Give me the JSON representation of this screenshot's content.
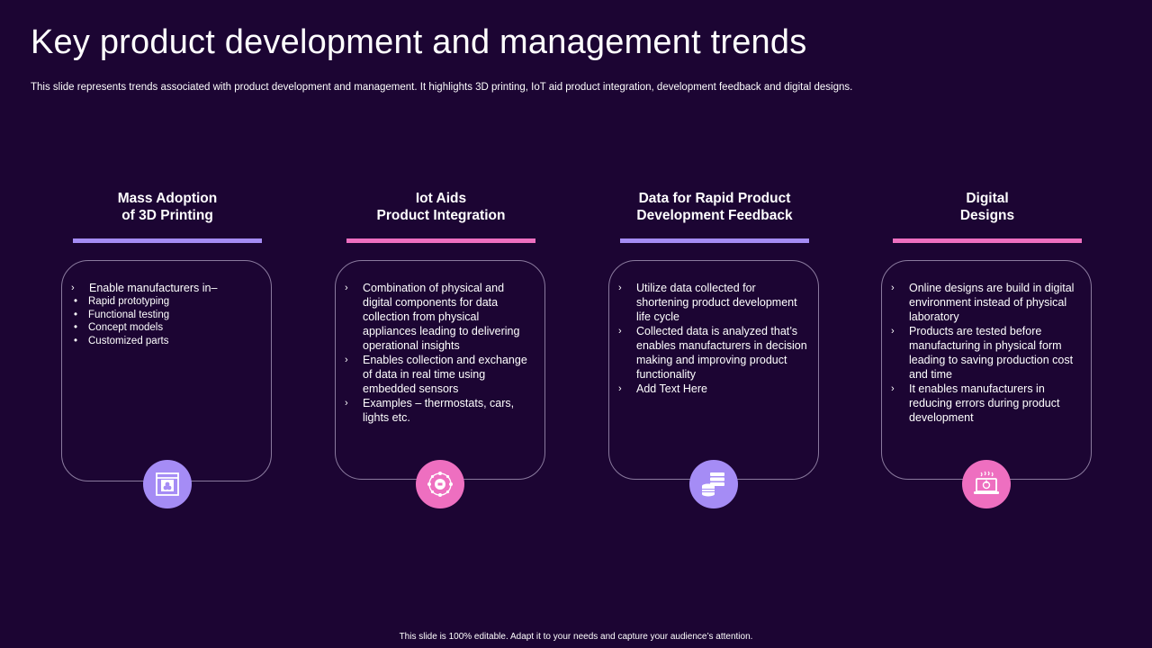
{
  "title": "Key product development and management trends",
  "subtitle": "This slide represents trends associated with product development and management. It highlights 3D printing, IoT aid product integration, development feedback and digital designs.",
  "columns": [
    {
      "heading_line1": "Mass Adoption",
      "heading_line2": "of 3D Printing",
      "accent": "#a58cf5",
      "icon": "3d-printer-icon",
      "bullets": [
        "Enable manufacturers in–"
      ],
      "sub_bullets": [
        "Rapid prototyping",
        "Functional testing",
        "Concept models",
        "Customized parts"
      ]
    },
    {
      "heading_line1": "Iot Aids",
      "heading_line2": "Product Integration",
      "accent": "#ee6fc0",
      "icon": "iot-network-icon",
      "bullets": [
        "Combination of physical and digital components for data collection from physical appliances leading to delivering operational insights",
        "Enables collection and exchange of data in real time using embedded sensors",
        "Examples – thermostats, cars, lights etc."
      ]
    },
    {
      "heading_line1": "Data for Rapid Product",
      "heading_line2": "Development Feedback",
      "accent": "#a58cf5",
      "icon": "database-icon",
      "bullets": [
        "Utilize data collected for shortening product development life cycle",
        "Collected data is analyzed that’s enables manufacturers in decision making and improving product functionality",
        "Add Text Here"
      ]
    },
    {
      "heading_line1": "Digital",
      "heading_line2": "Designs",
      "accent": "#ee6fc0",
      "icon": "digital-design-laptop-icon",
      "bullets": [
        "Online designs are build in digital environment  instead of physical laboratory",
        "Products are tested before manufacturing  in physical form leading to saving production cost and time",
        "It enables manufacturers in reducing errors during product development"
      ]
    }
  ],
  "chevron": "›",
  "dot": "•",
  "footer": "This slide is 100% editable. Adapt it to your needs and capture your audience’s attention."
}
